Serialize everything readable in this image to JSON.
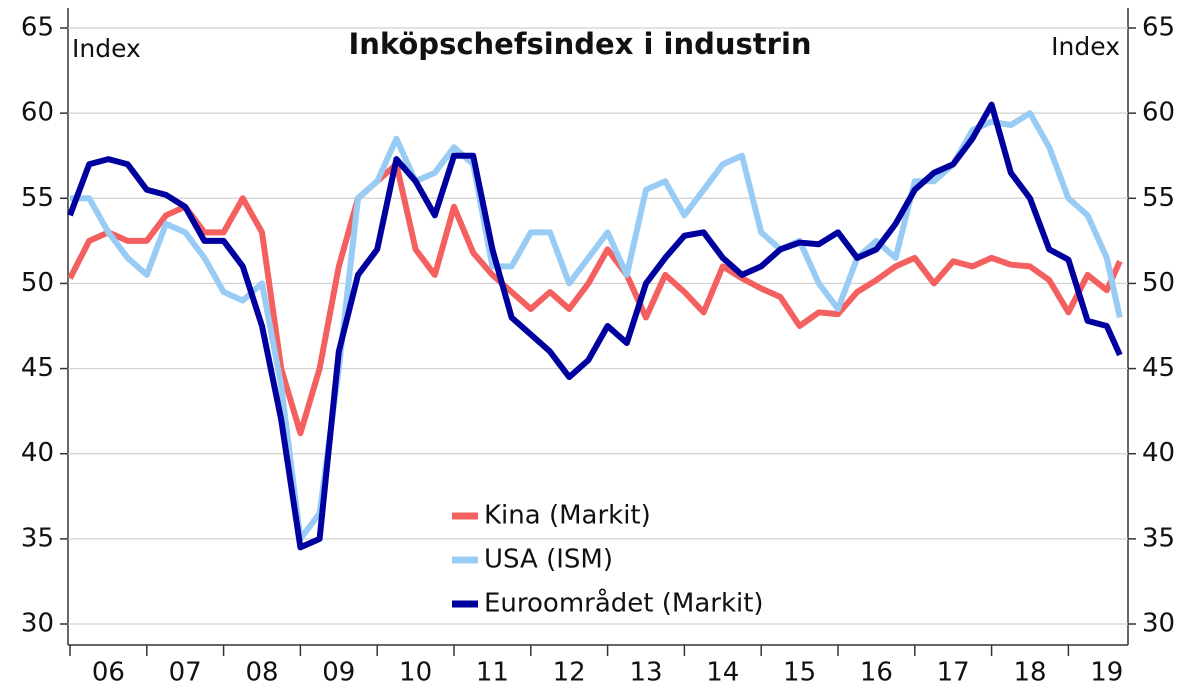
{
  "chart_data": {
    "type": "line",
    "title": "Inköpschefsindex i industrin",
    "y_label": "Index",
    "y2_label": "Index",
    "x": [
      2006,
      2006.25,
      2006.5,
      2006.75,
      2007,
      2007.25,
      2007.5,
      2007.75,
      2008,
      2008.25,
      2008.5,
      2008.75,
      2009,
      2009.25,
      2009.5,
      2009.75,
      2010,
      2010.25,
      2010.5,
      2010.75,
      2011,
      2011.25,
      2011.5,
      2011.75,
      2012,
      2012.25,
      2012.5,
      2012.75,
      2013,
      2013.25,
      2013.5,
      2013.75,
      2014,
      2014.25,
      2014.5,
      2014.75,
      2015,
      2015.25,
      2015.5,
      2015.75,
      2016,
      2016.25,
      2016.5,
      2016.75,
      2017,
      2017.25,
      2017.5,
      2017.75,
      2018,
      2018.25,
      2018.5,
      2018.75,
      2019,
      2019.25,
      2019.5,
      2019.67
    ],
    "xlim": [
      2006,
      2019.75
    ],
    "xticks": [
      {
        "value": 2006,
        "label": "06"
      },
      {
        "value": 2007,
        "label": "07"
      },
      {
        "value": 2008,
        "label": "08"
      },
      {
        "value": 2009,
        "label": "09"
      },
      {
        "value": 2010,
        "label": "10"
      },
      {
        "value": 2011,
        "label": "11"
      },
      {
        "value": 2012,
        "label": "12"
      },
      {
        "value": 2013,
        "label": "13"
      },
      {
        "value": 2014,
        "label": "14"
      },
      {
        "value": 2015,
        "label": "15"
      },
      {
        "value": 2016,
        "label": "16"
      },
      {
        "value": 2017,
        "label": "17"
      },
      {
        "value": 2018,
        "label": "18"
      },
      {
        "value": 2019,
        "label": "19"
      }
    ],
    "ylim": [
      30,
      65
    ],
    "yticks": [
      30,
      35,
      40,
      45,
      50,
      55,
      60,
      65
    ],
    "y2lim": [
      30,
      65
    ],
    "y2ticks": [
      30,
      35,
      40,
      45,
      50,
      55,
      60,
      65
    ],
    "grid": true,
    "series": [
      {
        "name": "Kina (Markit)",
        "color": "#f45f5f",
        "values": [
          50.3,
          52.5,
          53,
          52.5,
          52.5,
          54,
          54.5,
          53,
          53,
          55,
          53,
          45,
          41.2,
          45,
          51,
          55,
          56,
          57,
          52,
          50.5,
          54.5,
          51.8,
          50.5,
          49.5,
          48.5,
          49.5,
          48.5,
          50,
          52,
          50.5,
          48,
          50.5,
          49.5,
          48.3,
          51,
          50.3,
          49.7,
          49.2,
          47.5,
          48.3,
          48.2,
          49.5,
          50.2,
          51,
          51.5,
          50,
          51.3,
          51,
          51.5,
          51.1,
          51,
          50.2,
          48.3,
          50.5,
          49.6,
          51.3
        ]
      },
      {
        "name": "USA (ISM)",
        "color": "#99ccf5",
        "values": [
          55,
          55,
          53,
          51.5,
          50.5,
          53.5,
          53,
          51.5,
          49.5,
          49,
          50,
          44,
          35,
          36.5,
          45,
          55,
          56,
          58.5,
          56,
          56.5,
          58,
          57,
          51,
          51,
          53,
          53,
          50,
          51.5,
          53,
          50.5,
          55.5,
          56,
          54,
          55.5,
          57,
          57.5,
          53,
          52,
          52.5,
          50,
          48.5,
          51.5,
          52.5,
          51.5,
          56,
          56,
          57,
          59,
          59.5,
          59.3,
          60,
          58,
          55,
          54,
          51.5,
          48
        ]
      },
      {
        "name": "Euroområdet (Markit)",
        "color": "#00009f",
        "values": [
          54,
          57,
          57.3,
          57,
          55.5,
          55.2,
          54.5,
          52.5,
          52.5,
          51,
          47.5,
          42,
          34.5,
          35,
          46,
          50.5,
          52,
          57.3,
          56,
          54,
          57.5,
          57.5,
          52,
          48,
          47,
          46,
          44.5,
          45.5,
          47.5,
          46.5,
          50,
          51.5,
          52.8,
          53,
          51.5,
          50.5,
          51,
          52,
          52.4,
          52.3,
          53,
          51.5,
          52,
          53.5,
          55.5,
          56.5,
          57,
          58.5,
          60.5,
          56.5,
          55,
          52,
          51.4,
          47.8,
          47.5,
          45.8
        ]
      }
    ]
  }
}
